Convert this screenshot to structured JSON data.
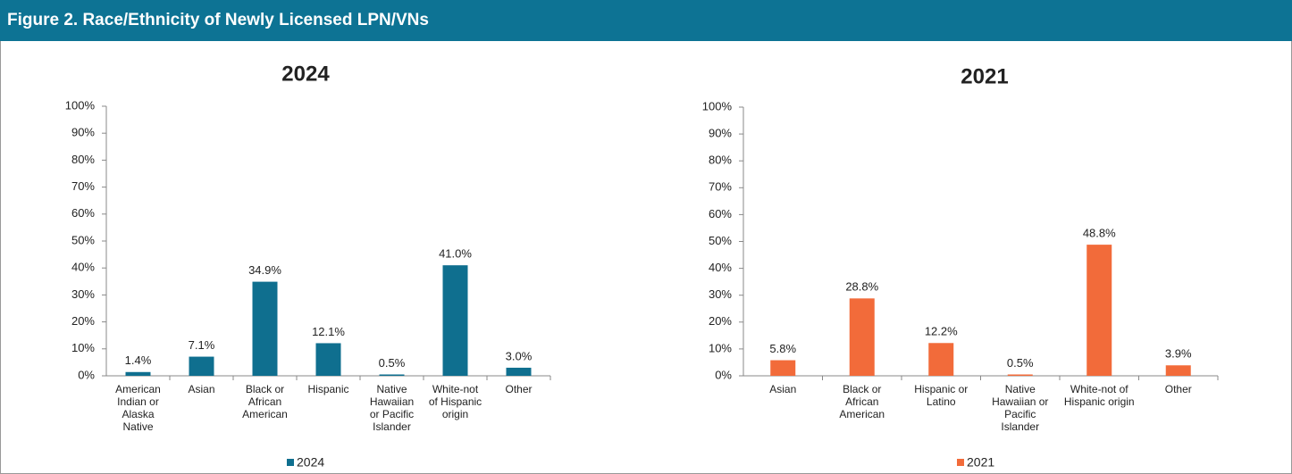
{
  "header": {
    "title": "Figure 2. Race/Ethnicity of Newly Licensed LPN/VNs"
  },
  "chart_data": [
    {
      "type": "bar",
      "title": "2024",
      "categories": [
        "American Indian or Alaska Native",
        "Asian",
        "Black or African American",
        "Hispanic",
        "Native Hawaiian or Pacific Islander",
        "White-not of Hispanic origin",
        "Other"
      ],
      "series": [
        {
          "name": "2024",
          "color": "#0f6f8f",
          "values": [
            1.4,
            7.1,
            34.9,
            12.1,
            0.5,
            41.0,
            3.0
          ],
          "value_labels": [
            "1.4%",
            "7.1%",
            "34.9%",
            "12.1%",
            "0.5%",
            "41.0%",
            "3.0%"
          ]
        }
      ],
      "ylim": [
        0,
        100
      ],
      "yticks": [
        {
          "value": 0,
          "label": "0%"
        },
        {
          "value": 10,
          "label": "10%"
        },
        {
          "value": 20,
          "label": "20%"
        },
        {
          "value": 30,
          "label": "30%"
        },
        {
          "value": 40,
          "label": "40%"
        },
        {
          "value": 50,
          "label": "50%"
        },
        {
          "value": 60,
          "label": "60%"
        },
        {
          "value": 70,
          "label": "70%"
        },
        {
          "value": 80,
          "label": "80%"
        },
        {
          "value": 90,
          "label": "90%"
        },
        {
          "value": 100,
          "label": "100%"
        }
      ],
      "legend": "bottom"
    },
    {
      "type": "bar",
      "title": "2021",
      "categories": [
        "Asian",
        "Black or African American",
        "Hispanic or Latino",
        "Native Hawaiian or Pacific Islander",
        "White-not of Hispanic origin",
        "Other"
      ],
      "series": [
        {
          "name": "2021",
          "color": "#f26b3a",
          "values": [
            5.8,
            28.8,
            12.2,
            0.5,
            48.8,
            3.9
          ],
          "value_labels": [
            "5.8%",
            "28.8%",
            "12.2%",
            "0.5%",
            "48.8%",
            "3.9%"
          ]
        }
      ],
      "ylim": [
        0,
        100
      ],
      "yticks": [
        {
          "value": 0,
          "label": "0%"
        },
        {
          "value": 10,
          "label": "10%"
        },
        {
          "value": 20,
          "label": "20%"
        },
        {
          "value": 30,
          "label": "30%"
        },
        {
          "value": 40,
          "label": "40%"
        },
        {
          "value": 50,
          "label": "50%"
        },
        {
          "value": 60,
          "label": "60%"
        },
        {
          "value": 70,
          "label": "70%"
        },
        {
          "value": 80,
          "label": "80%"
        },
        {
          "value": 90,
          "label": "90%"
        },
        {
          "value": 100,
          "label": "100%"
        }
      ],
      "legend": "bottom"
    }
  ]
}
